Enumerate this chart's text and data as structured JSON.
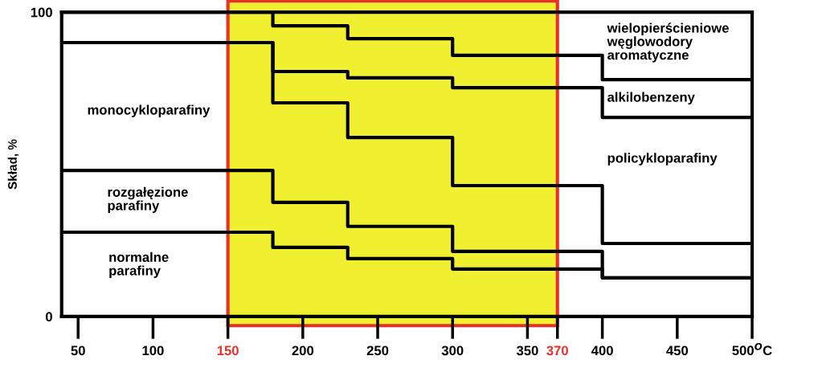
{
  "chart_data": {
    "type": "step",
    "ylabel": "Skład, %",
    "xlim": [
      39,
      500
    ],
    "ylim": [
      0,
      100
    ],
    "xticks": [
      50,
      100,
      150,
      200,
      250,
      300,
      350,
      370,
      400,
      450,
      {
        "value": 500,
        "label": "500$^{O}$C"
      }
    ],
    "yticks": [
      0,
      100
    ],
    "grid": false,
    "bands": [
      {
        "axis": "x",
        "from": 150,
        "to": 370,
        "color": "#f0ef30"
      }
    ],
    "series": [
      {
        "color": "#000000",
        "x": [
          39,
          180,
          230,
          300,
          400,
          500
        ],
        "values": [
          100,
          95.5,
          91.3,
          85.8,
          77.8,
          77.8
        ]
      },
      {
        "color": "#000000",
        "x": [
          39,
          180,
          230,
          300,
          400,
          500
        ],
        "values": [
          90,
          80.5,
          78.4,
          75.2,
          65.4,
          65.4
        ]
      },
      {
        "color": "#000000",
        "x": [
          39,
          180,
          230,
          300,
          400,
          500
        ],
        "values": [
          90,
          70.2,
          58.8,
          43.0,
          24.0,
          24.0
        ]
      },
      {
        "color": "#000000",
        "x": [
          39,
          180,
          230,
          300,
          400,
          500
        ],
        "values": [
          48.0,
          37.5,
          29.6,
          21.4,
          12.7,
          12.7
        ]
      },
      {
        "color": "#000000",
        "x": [
          39,
          180,
          230,
          300,
          400,
          500
        ],
        "values": [
          27.7,
          22.7,
          19.0,
          15.6,
          12.7,
          12.7
        ]
      }
    ],
    "annotations": [
      "monocykloparafiny",
      "rozgałęzione\nparafiny",
      "normalne\nparafiny",
      "wielopierścieniowe\nwęglowodory\naromatyczne",
      "alkilobenzeny",
      "policykloparafiny"
    ]
  }
}
